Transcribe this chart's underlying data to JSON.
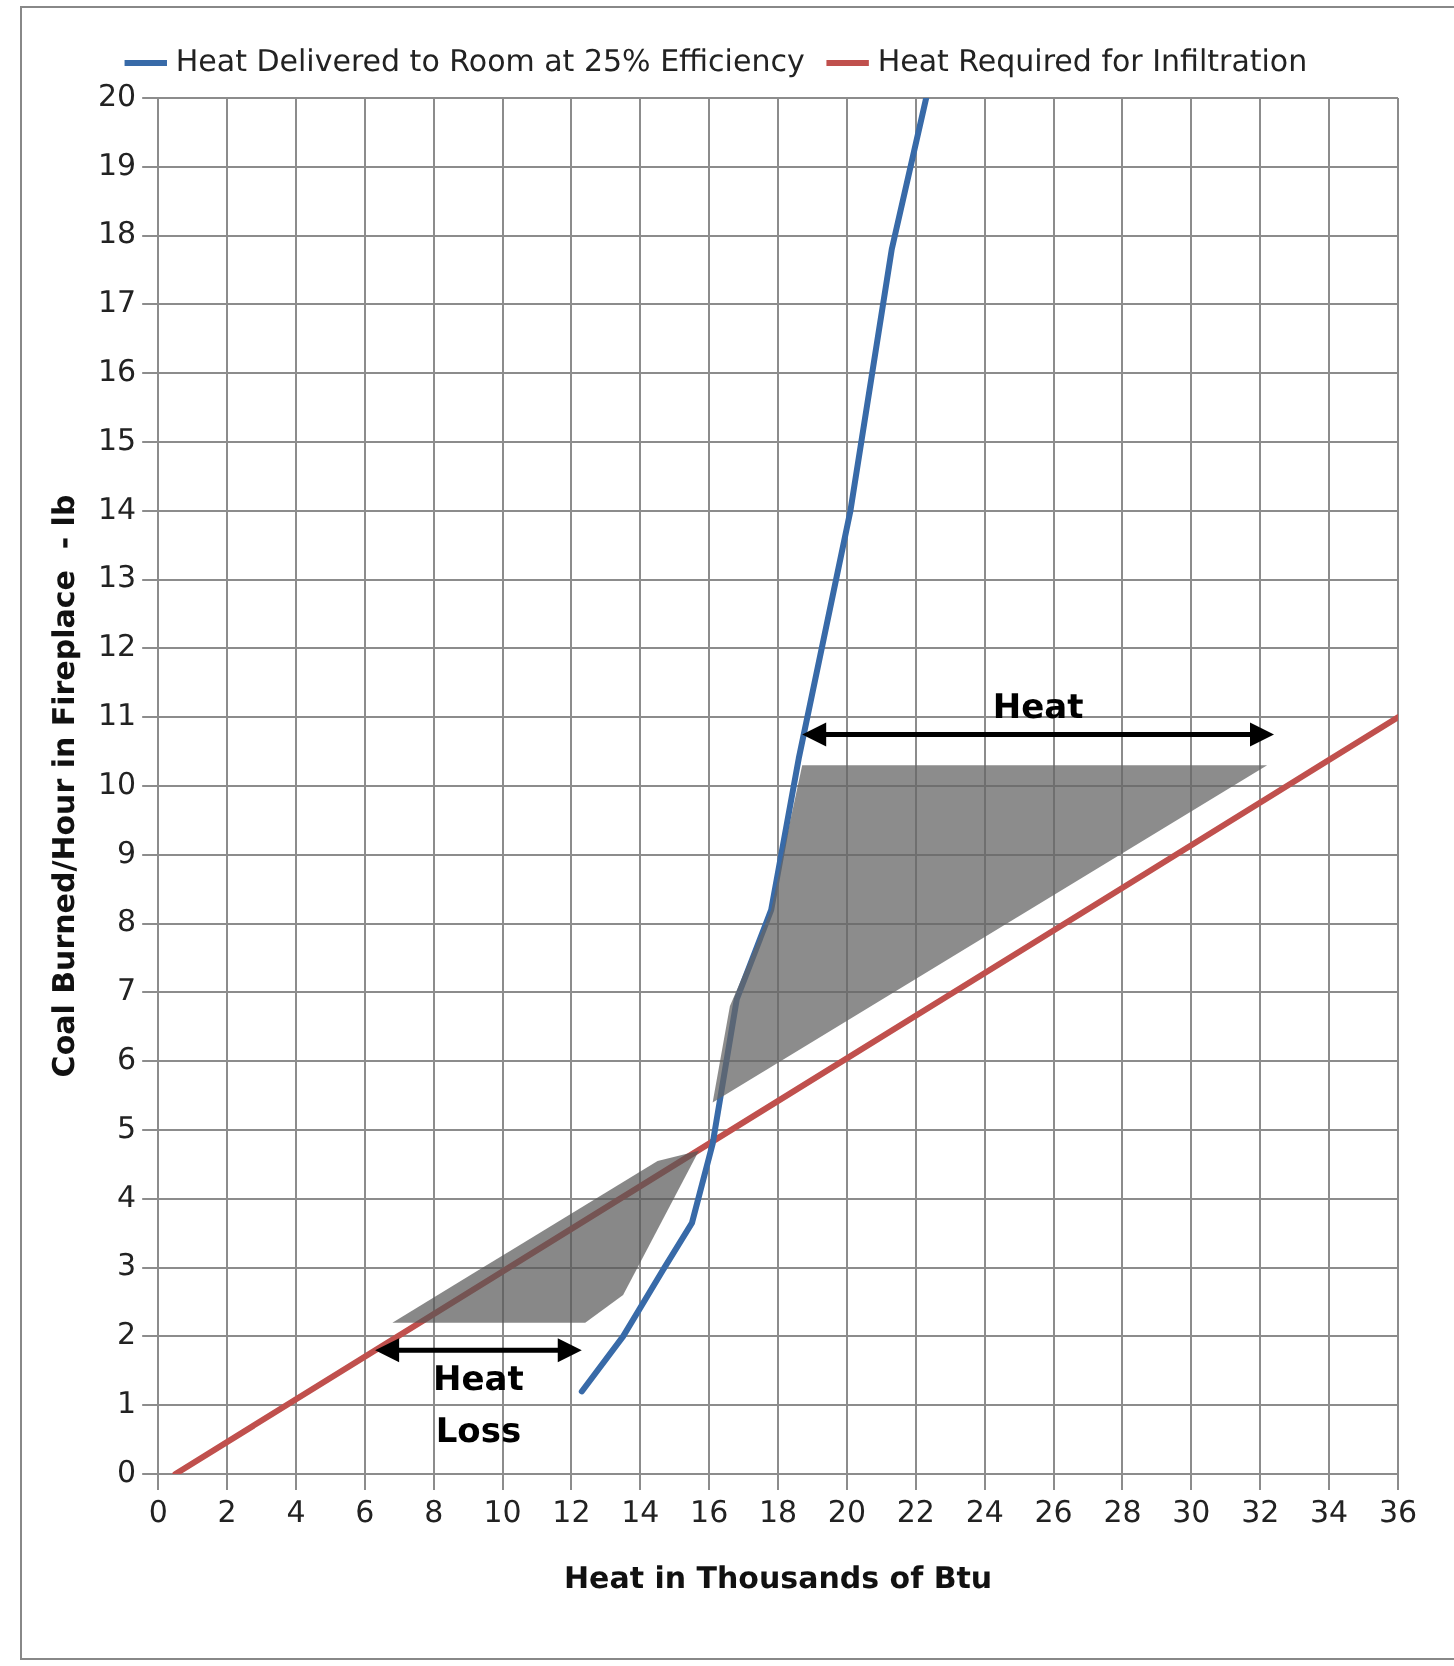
{
  "chart_data": {
    "type": "line",
    "xlabel": "Heat in Thousands of Btu",
    "ylabel": "Coal Burned/Hour in Fireplace  - lb",
    "series": [
      {
        "name": "Heat Delivered to Room at 25% Efficiency",
        "color": "#386aa8",
        "x": [
          12.3,
          13.5,
          14.7,
          15.5,
          16.1,
          16.8,
          17.8,
          18.6,
          20.1,
          21.3,
          22.3
        ],
        "values": [
          1.2,
          2.0,
          3.0,
          3.65,
          4.8,
          6.9,
          8.2,
          10.4,
          14.0,
          17.8,
          20
        ]
      },
      {
        "name": "Heat Required for Infiltration",
        "color": "#c0504d",
        "x": [
          0.5,
          36
        ],
        "values": [
          0,
          11
        ]
      }
    ],
    "xlim": [
      0,
      36
    ],
    "xticks": [
      0,
      2,
      4,
      6,
      8,
      10,
      12,
      14,
      16,
      18,
      20,
      22,
      24,
      26,
      28,
      30,
      32,
      34,
      36
    ],
    "ylim": [
      0,
      20
    ],
    "yticks": [
      0,
      1,
      2,
      3,
      4,
      5,
      6,
      7,
      8,
      9,
      10,
      11,
      12,
      13,
      14,
      15,
      16,
      17,
      18,
      19,
      20
    ],
    "grid": true,
    "legend": "top",
    "marker": "none",
    "line_style": "solid",
    "annotations": [
      "Heat",
      {
        "text": "Heat Loss",
        "x": 6.3,
        "y": 1.8
      }
    ]
  }
}
